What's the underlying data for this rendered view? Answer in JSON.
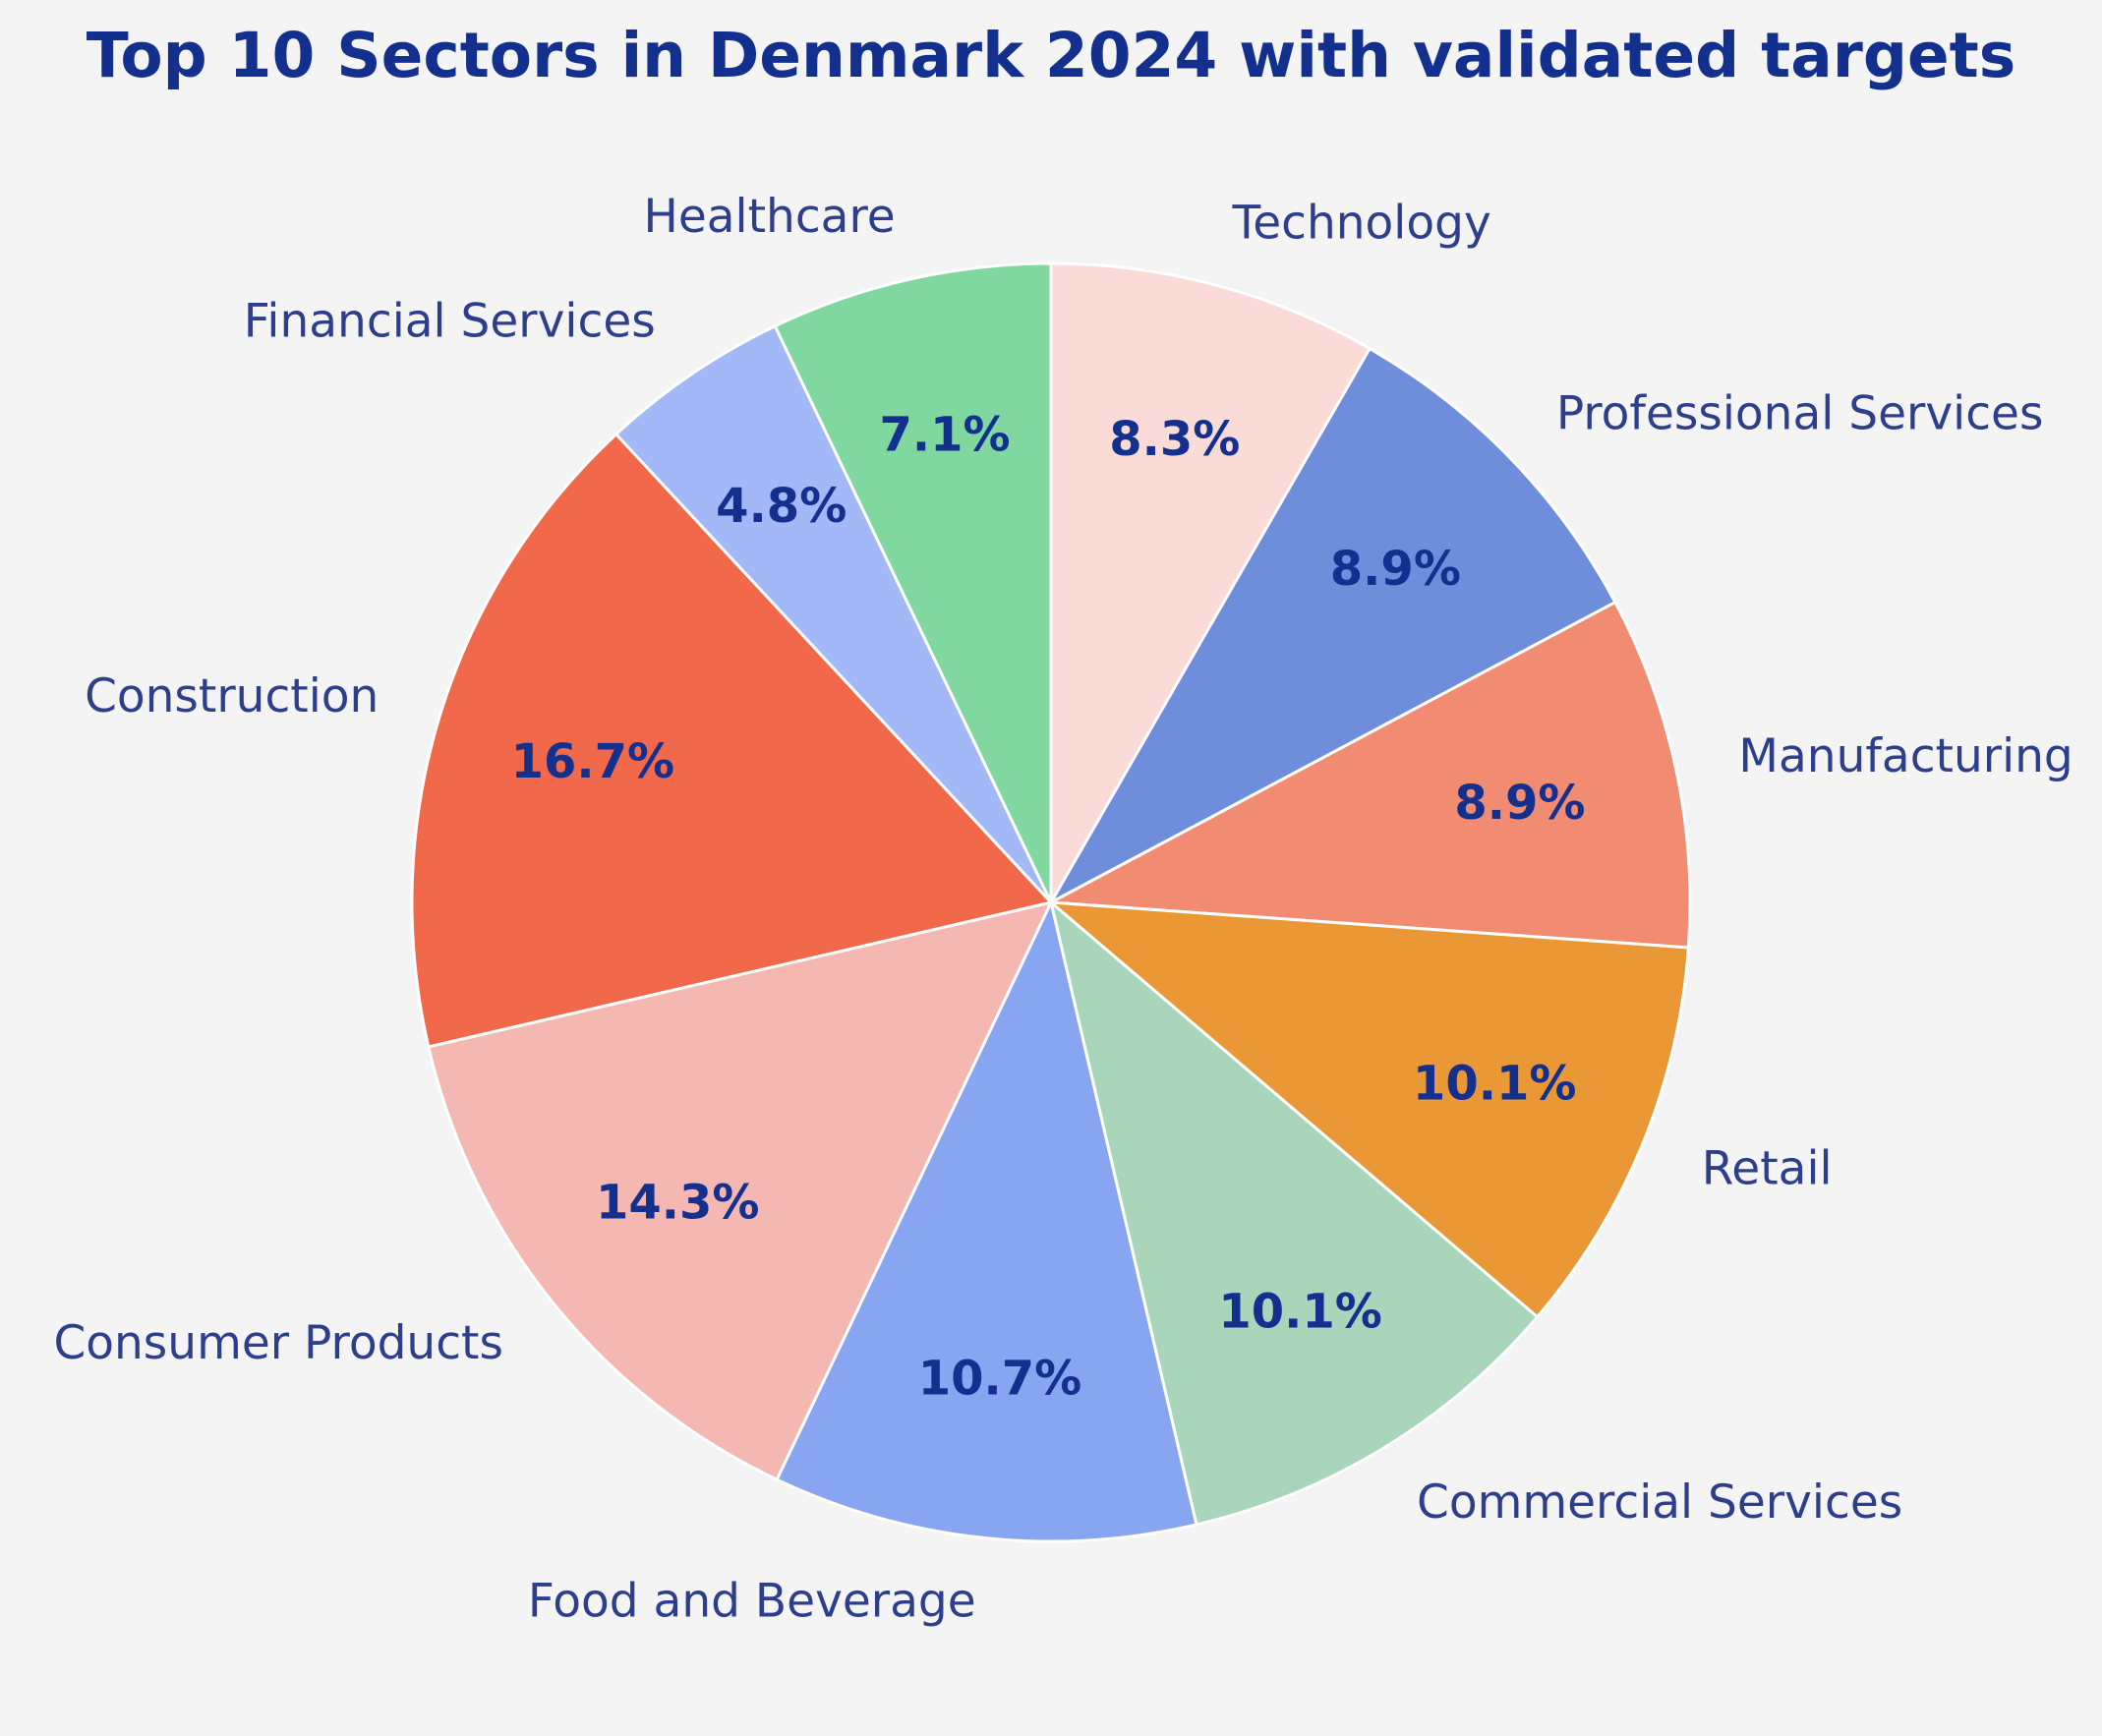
{
  "chart_data": {
    "type": "pie",
    "title": "Top 10 Sectors in Denmark 2024 with validated targets",
    "start_angle_deg": 90,
    "direction": "clockwise",
    "slices": [
      {
        "label": "Technology",
        "value": 8.3,
        "pct_label": "8.3%",
        "color": "#fadbd8"
      },
      {
        "label": "Professional Services",
        "value": 8.9,
        "pct_label": "8.9%",
        "color": "#6e8ddb"
      },
      {
        "label": "Manufacturing",
        "value": 8.9,
        "pct_label": "8.9%",
        "color": "#f18c72"
      },
      {
        "label": "Retail",
        "value": 10.1,
        "pct_label": "10.1%",
        "color": "#ea9836"
      },
      {
        "label": "Commercial Services",
        "value": 10.1,
        "pct_label": "10.1%",
        "color": "#a9d5ba"
      },
      {
        "label": "Food and Beverage",
        "value": 10.7,
        "pct_label": "10.7%",
        "color": "#87a5f1"
      },
      {
        "label": "Consumer Products",
        "value": 14.3,
        "pct_label": "14.3%",
        "color": "#f5b7b1"
      },
      {
        "label": "Construction",
        "value": 16.7,
        "pct_label": "16.7%",
        "color": "#f1684b"
      },
      {
        "label": "Financial Services",
        "value": 4.8,
        "pct_label": "4.8%",
        "color": "#a3b8f6"
      },
      {
        "label": "Healthcare",
        "value": 7.1,
        "pct_label": "7.1%",
        "color": "#80d8a0"
      }
    ],
    "colors": {
      "title": "#14308f",
      "labels": "#2c3e8c",
      "pct_labels": "#14308f",
      "edge": "#ffffff",
      "background": "#f4f4f4"
    }
  }
}
